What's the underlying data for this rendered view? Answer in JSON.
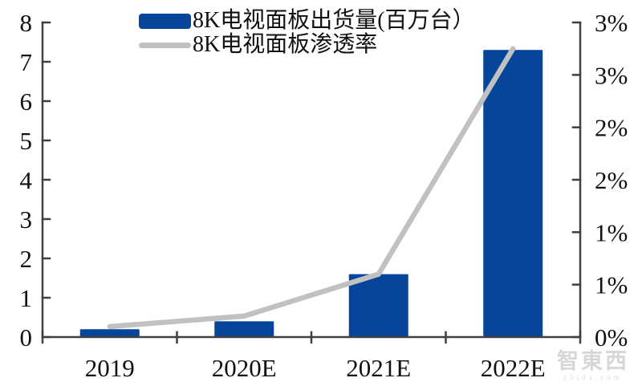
{
  "watermark": {
    "brand": "智東西",
    "domain": "zhidx.com"
  },
  "colors": {
    "bar": "#05459C",
    "line": "#C1C1C1",
    "axis": "#404040",
    "label_text": "#111111",
    "background": "#FFFFFF"
  },
  "chart_data": {
    "type": "combo",
    "subtypes": [
      "bar",
      "line"
    ],
    "title": "",
    "categories": [
      "2019",
      "2020E",
      "2021E",
      "2022E"
    ],
    "series": [
      {
        "name": "8K电视面板出货量(百万台）",
        "type": "bar",
        "axis": "left",
        "unit": "百万台",
        "values": [
          0.2,
          0.4,
          1.6,
          7.3
        ],
        "color": "#05459C"
      },
      {
        "name": "8K电视面板渗透率",
        "type": "line",
        "axis": "right",
        "unit": "%",
        "values": [
          0.1,
          0.2,
          0.6,
          2.75
        ],
        "color": "#C1C1C1"
      }
    ],
    "left_axis": {
      "min": 0,
      "max": 8,
      "tick_step": 1,
      "tick_values": [
        0,
        1,
        2,
        3,
        4,
        5,
        6,
        7,
        8
      ],
      "tick_labels": [
        "0",
        "1",
        "2",
        "3",
        "4",
        "5",
        "6",
        "7",
        "8"
      ]
    },
    "right_axis": {
      "min": 0,
      "max": 3,
      "tick_step": 0.5,
      "tick_values": [
        0,
        0.5,
        1,
        1.5,
        2,
        2.5,
        3
      ],
      "tick_labels": [
        "0%",
        "1%",
        "1%",
        "2%",
        "2%",
        "3%",
        "3%"
      ]
    },
    "grid": false,
    "legend_position": "top-left"
  }
}
